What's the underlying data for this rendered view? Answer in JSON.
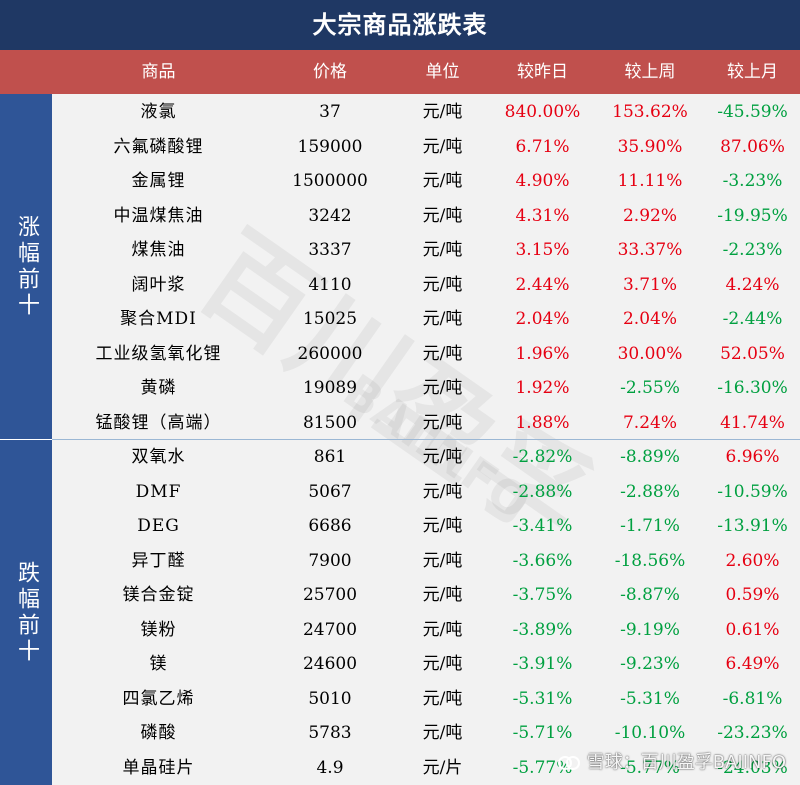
{
  "title": "大宗商品涨跌表",
  "headers": [
    "商品",
    "价格",
    "单位",
    "较昨日",
    "较上周",
    "较上月"
  ],
  "groups": [
    {
      "label": "涨幅前十",
      "rows": [
        {
          "name": "液氯",
          "price": "37",
          "unit": "元/吨",
          "day": "840.00%",
          "week": "153.62%",
          "month": "-45.59%"
        },
        {
          "name": "六氟磷酸锂",
          "price": "159000",
          "unit": "元/吨",
          "day": "6.71%",
          "week": "35.90%",
          "month": "87.06%"
        },
        {
          "name": "金属锂",
          "price": "1500000",
          "unit": "元/吨",
          "day": "4.90%",
          "week": "11.11%",
          "month": "-3.23%"
        },
        {
          "name": "中温煤焦油",
          "price": "3242",
          "unit": "元/吨",
          "day": "4.31%",
          "week": "2.92%",
          "month": "-19.95%"
        },
        {
          "name": "煤焦油",
          "price": "3337",
          "unit": "元/吨",
          "day": "3.15%",
          "week": "33.37%",
          "month": "-2.23%"
        },
        {
          "name": "阔叶浆",
          "price": "4110",
          "unit": "元/吨",
          "day": "2.44%",
          "week": "3.71%",
          "month": "4.24%"
        },
        {
          "name": "聚合MDI",
          "price": "15025",
          "unit": "元/吨",
          "day": "2.04%",
          "week": "2.04%",
          "month": "-2.44%"
        },
        {
          "name": "工业级氢氧化锂",
          "price": "260000",
          "unit": "元/吨",
          "day": "1.96%",
          "week": "30.00%",
          "month": "52.05%"
        },
        {
          "name": "黄磷",
          "price": "19089",
          "unit": "元/吨",
          "day": "1.92%",
          "week": "-2.55%",
          "month": "-16.30%"
        },
        {
          "name": "锰酸锂（高端）",
          "price": "81500",
          "unit": "元/吨",
          "day": "1.88%",
          "week": "7.24%",
          "month": "41.74%"
        }
      ]
    },
    {
      "label": "跌幅前十",
      "rows": [
        {
          "name": "双氧水",
          "price": "861",
          "unit": "元/吨",
          "day": "-2.82%",
          "week": "-8.89%",
          "month": "6.96%"
        },
        {
          "name": "DMF",
          "price": "5067",
          "unit": "元/吨",
          "day": "-2.88%",
          "week": "-2.88%",
          "month": "-10.59%"
        },
        {
          "name": "DEG",
          "price": "6686",
          "unit": "元/吨",
          "day": "-3.41%",
          "week": "-1.71%",
          "month": "-13.91%"
        },
        {
          "name": "异丁醛",
          "price": "7900",
          "unit": "元/吨",
          "day": "-3.66%",
          "week": "-18.56%",
          "month": "2.60%"
        },
        {
          "name": "镁合金锭",
          "price": "25700",
          "unit": "元/吨",
          "day": "-3.75%",
          "week": "-8.87%",
          "month": "0.59%"
        },
        {
          "name": "镁粉",
          "price": "24700",
          "unit": "元/吨",
          "day": "-3.89%",
          "week": "-9.19%",
          "month": "0.61%"
        },
        {
          "name": "镁",
          "price": "24600",
          "unit": "元/吨",
          "day": "-3.91%",
          "week": "-9.23%",
          "month": "6.49%"
        },
        {
          "name": "四氯乙烯",
          "price": "5010",
          "unit": "元/吨",
          "day": "-5.31%",
          "week": "-5.31%",
          "month": "-6.81%"
        },
        {
          "name": "磷酸",
          "price": "5783",
          "unit": "元/吨",
          "day": "-5.71%",
          "week": "-10.10%",
          "month": "-23.23%"
        },
        {
          "name": "单晶硅片",
          "price": "4.9",
          "unit": "元/片",
          "day": "-5.77%",
          "week": "-5.77%",
          "month": "-24.03%"
        }
      ]
    }
  ],
  "watermark": {
    "main": "百川盈孚",
    "sub": "BAIINFO"
  },
  "source": "雪球：百川盈孚BAIINFO",
  "colors": {
    "title_bg": "#1f3864",
    "header_bg": "#c0504d",
    "sidebar_bg": "#2f5597",
    "up": "#e60012",
    "down": "#00a040"
  }
}
